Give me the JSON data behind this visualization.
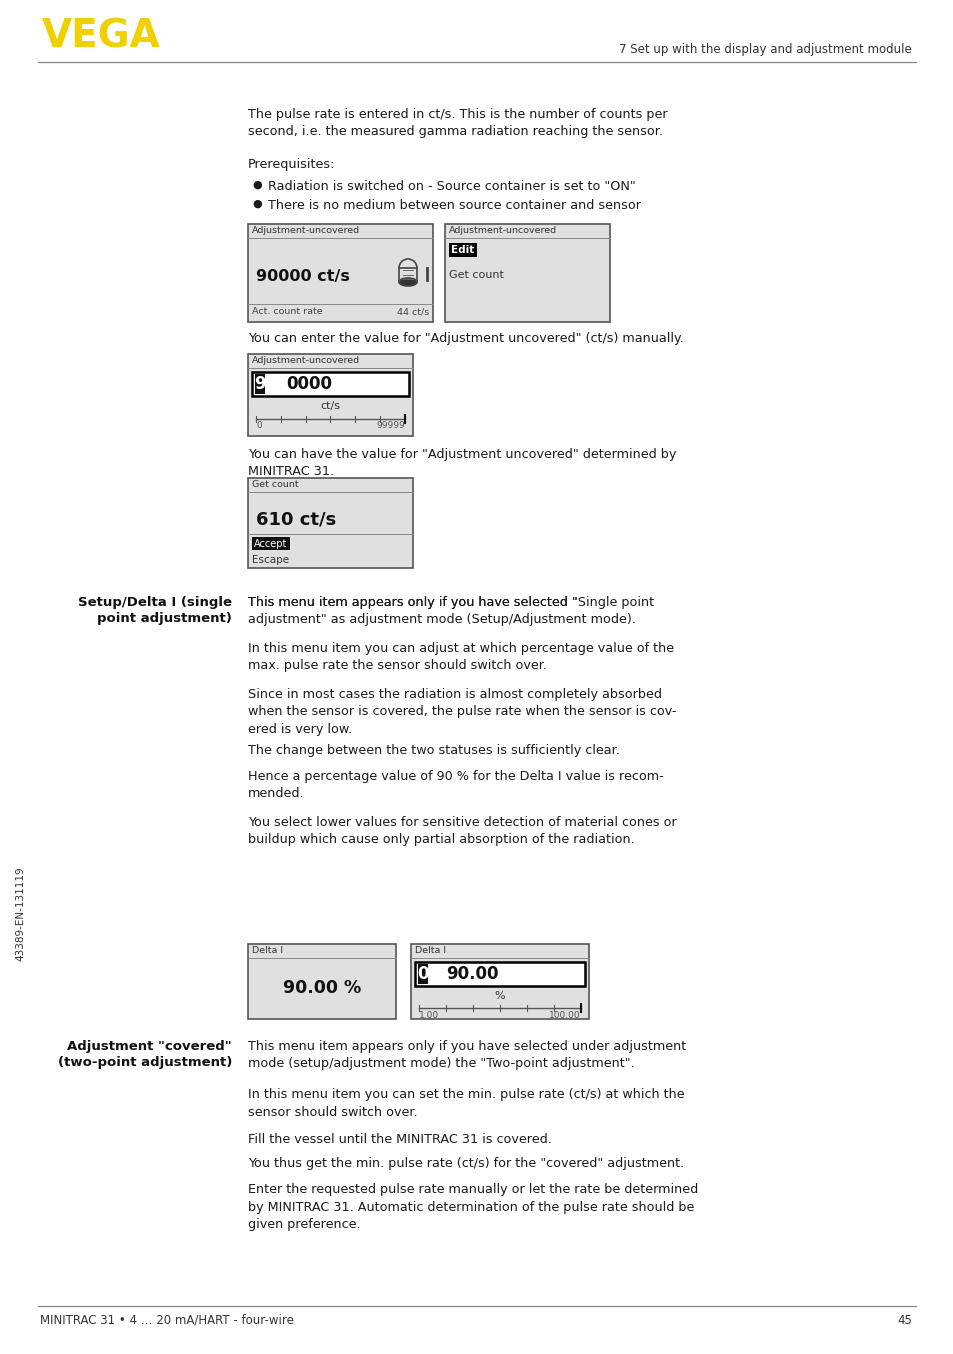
{
  "page_bg": "#ffffff",
  "vega_color": "#f0d000",
  "header_right_text": "7 Set up with the display and adjustment module",
  "footer_left_text": "MINITRAC 31 • 4 … 20 mA/HART - four-wire",
  "footer_right_text": "45",
  "sidebar_text": "43389-EN-131119",
  "text_color": "#1a1a1a",
  "box_bg": "#e0e0e0",
  "box_border": "#555555"
}
